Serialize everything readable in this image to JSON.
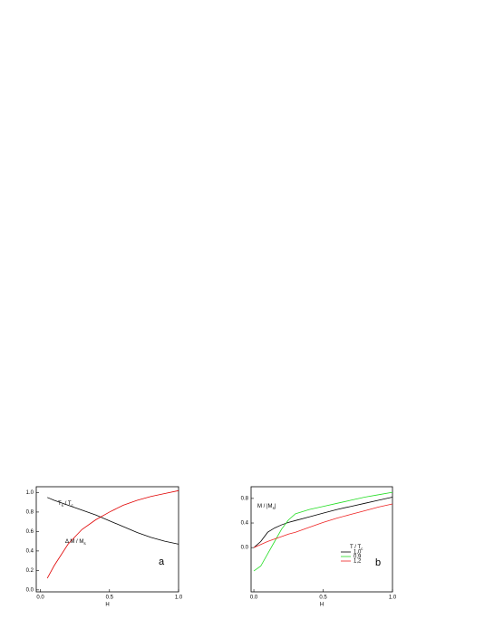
{
  "chart_data": [
    {
      "type": "line",
      "xlabel": "H",
      "panel_label": "a",
      "x": [
        0.05,
        0.1,
        0.2,
        0.3,
        0.4,
        0.5,
        0.6,
        0.7,
        0.8,
        0.9,
        1.0
      ],
      "series": [
        {
          "color": "#000000",
          "values": [
            0.95,
            0.92,
            0.87,
            0.82,
            0.77,
            0.71,
            0.65,
            0.59,
            0.54,
            0.5,
            0.47
          ]
        },
        {
          "color": "#e00000",
          "values": [
            0.12,
            0.25,
            0.47,
            0.62,
            0.72,
            0.8,
            0.87,
            0.92,
            0.96,
            0.99,
            1.02
          ]
        }
      ],
      "annotations": [
        {
          "parts": [
            {
              "t": "T"
            },
            {
              "t": "s",
              "sub": true
            },
            {
              "t": " / T"
            },
            {
              "t": "c",
              "sub": true
            }
          ]
        },
        {
          "parts": [
            {
              "t": "Δ M / M"
            },
            {
              "t": "s",
              "sub": true
            }
          ]
        }
      ],
      "xlim": [
        -0.03,
        1.0
      ],
      "ylim": [
        -0.02,
        1.06
      ],
      "xticks": [
        {
          "value": 0,
          "label": "0.0"
        },
        0.5,
        {
          "value": 1,
          "label": "1.0"
        }
      ],
      "yticks": [
        {
          "value": 0,
          "label": "0.0"
        },
        0.2,
        0.4,
        0.6,
        0.8,
        {
          "value": 1,
          "label": "1.0"
        }
      ]
    },
    {
      "type": "line",
      "xlabel": "H",
      "panel_label": "b",
      "x": [
        0,
        0.05,
        0.1,
        0.15,
        0.2,
        0.25,
        0.3,
        0.4,
        0.5,
        0.6,
        0.7,
        0.8,
        0.9,
        1.0
      ],
      "series": [
        {
          "name": "1,0",
          "color": "#000000",
          "values": [
            0.0,
            0.1,
            0.25,
            0.32,
            0.37,
            0.41,
            0.44,
            0.5,
            0.56,
            0.62,
            0.67,
            0.72,
            0.77,
            0.82
          ]
        },
        {
          "name": "0,9",
          "color": "#22dd22",
          "values": [
            -0.38,
            -0.3,
            -0.1,
            0.1,
            0.3,
            0.45,
            0.55,
            0.62,
            0.67,
            0.72,
            0.77,
            0.82,
            0.86,
            0.9
          ]
        },
        {
          "name": "1,2",
          "color": "#ee2222",
          "values": [
            0.0,
            0.05,
            0.1,
            0.14,
            0.18,
            0.22,
            0.25,
            0.33,
            0.41,
            0.48,
            0.54,
            0.6,
            0.66,
            0.71
          ]
        }
      ],
      "annotations": [
        {
          "parts": [
            {
              "t": "M / |M"
            },
            {
              "t": "s",
              "sub": true
            },
            {
              "t": "|"
            }
          ]
        }
      ],
      "legend_title": {
        "parts": [
          {
            "t": "T / T"
          },
          {
            "t": "c",
            "sub": true
          }
        ]
      },
      "xlim": [
        -0.02,
        1.0
      ],
      "ylim": [
        -0.72,
        0.99
      ],
      "xticks": [
        {
          "value": 0,
          "label": "0.0"
        },
        0.5,
        {
          "value": 1,
          "label": "1.0"
        }
      ],
      "yticks": [
        {
          "value": 0,
          "label": "0.0"
        },
        0.4,
        0.8
      ]
    }
  ]
}
